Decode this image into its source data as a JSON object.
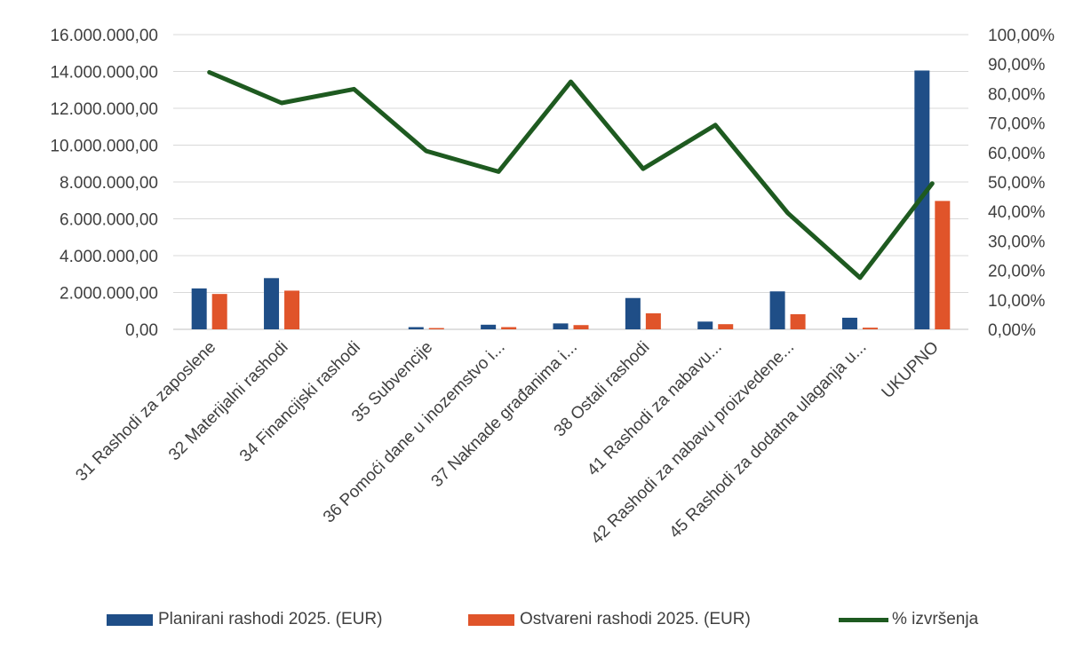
{
  "chart_data": {
    "type": "bar",
    "title": "",
    "categories": [
      "31 Rashodi za zaposlene",
      "32 Materijalni rashodi",
      "34 Financijski rashodi",
      "35 Subvencije",
      "36 Pomoći dane u inozemstvo i...",
      "37 Naknade građanima i...",
      "38 Ostali rashodi",
      "41 Rashodi za nabavu...",
      "42 Rashodi za nabavu proizvedene...",
      "45 Rashodi za dodatna ulaganja u...",
      "UKUPNO"
    ],
    "series": [
      {
        "name": "Planirani rashodi 2025. (EUR)",
        "type": "bar",
        "axis": "left",
        "color": "#1f4e87",
        "values": [
          2220000,
          2780000,
          0,
          120000,
          250000,
          320000,
          1700000,
          420000,
          2060000,
          630000,
          14050000
        ]
      },
      {
        "name": "Ostvareni rashodi 2025. (EUR)",
        "type": "bar",
        "axis": "left",
        "color": "#e0542a",
        "values": [
          1920000,
          2100000,
          0,
          70000,
          120000,
          230000,
          870000,
          280000,
          820000,
          90000,
          6970000
        ]
      },
      {
        "name": "% izvršenja",
        "type": "line",
        "axis": "right",
        "color": "#1e5a20",
        "values": [
          87.2,
          76.8,
          81.5,
          60.5,
          53.5,
          84,
          54.5,
          69.3,
          39.5,
          17.5,
          49.5
        ]
      }
    ],
    "y_left": {
      "min": 0,
      "max": 16000000,
      "ticks": [
        "0,00",
        "2.000.000,00",
        "4.000.000,00",
        "6.000.000,00",
        "8.000.000,00",
        "10.000.000,00",
        "12.000.000,00",
        "14.000.000,00",
        "16.000.000,00"
      ]
    },
    "y_right": {
      "min": 0,
      "max": 100,
      "ticks": [
        "0,00%",
        "10,00%",
        "20,00%",
        "30,00%",
        "40,00%",
        "50,00%",
        "60,00%",
        "70,00%",
        "80,00%",
        "90,00%",
        "100,00%"
      ]
    },
    "grid": true,
    "legend_position": "bottom"
  }
}
